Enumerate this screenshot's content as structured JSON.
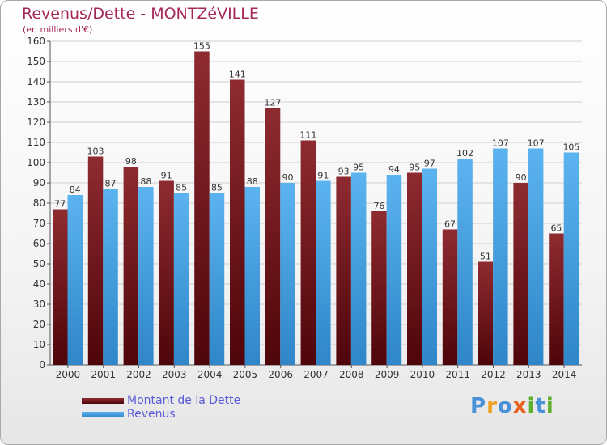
{
  "header": {
    "title": "Revenus/Dette - MONTZéVILLE",
    "subtitle": "(en milliers d'€)"
  },
  "legend": {
    "debt_label": "Montant de la Dette",
    "revenue_label": "Revenus"
  },
  "logo": {
    "text": "Proxiti",
    "letters": [
      "P",
      "r",
      "o",
      "x",
      "i",
      "t",
      "i"
    ]
  },
  "colors": {
    "debt": "#6b0f16",
    "revenue": "#48a3e6",
    "title": "#a5285a",
    "legend_text": "#5a5ad8",
    "logo_letters": [
      "#4a92d8",
      "#f0a020",
      "#4a92d8",
      "#e8601c",
      "#60b030",
      "#4a92d8",
      "#60b030"
    ]
  },
  "chart_data": {
    "type": "bar",
    "categories": [
      "2000",
      "2001",
      "2002",
      "2003",
      "2004",
      "2005",
      "2006",
      "2007",
      "2008",
      "2009",
      "2010",
      "2011",
      "2012",
      "2013",
      "2014"
    ],
    "series": [
      {
        "name": "Montant de la Dette",
        "values": [
          77,
          103,
          98,
          91,
          155,
          141,
          127,
          111,
          93,
          76,
          95,
          67,
          51,
          90,
          65
        ]
      },
      {
        "name": "Revenus",
        "values": [
          84,
          87,
          88,
          85,
          85,
          88,
          90,
          91,
          95,
          94,
          97,
          102,
          107,
          107,
          105
        ]
      }
    ],
    "ylim": [
      0,
      160
    ],
    "yticks": [
      0,
      10,
      20,
      30,
      40,
      50,
      60,
      70,
      80,
      90,
      100,
      110,
      120,
      130,
      140,
      150,
      160
    ],
    "grid": true,
    "legend_position": "bottom-left",
    "xlabel": "",
    "ylabel": ""
  }
}
